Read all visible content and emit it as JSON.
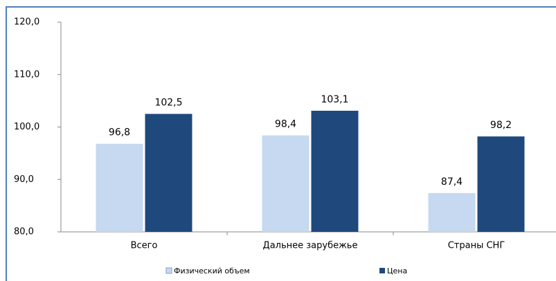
{
  "chart_data": {
    "type": "bar",
    "categories": [
      "Всего",
      "Дальнее зарубежье",
      "Страны СНГ"
    ],
    "series": [
      {
        "name": "Физический объем",
        "color": "#c6d9f1",
        "values": [
          96.8,
          98.4,
          87.4
        ],
        "value_labels": [
          "96,8",
          "98,4",
          "87,4"
        ]
      },
      {
        "name": "Цена",
        "color": "#1f497d",
        "values": [
          102.5,
          103.1,
          98.2
        ],
        "value_labels": [
          "102,5",
          "103,1",
          "98,2"
        ]
      }
    ],
    "ylim": [
      80,
      120
    ],
    "yticks": [
      {
        "value": 80,
        "label": "80,0"
      },
      {
        "value": 90,
        "label": "90,0"
      },
      {
        "value": 100,
        "label": "100,0"
      },
      {
        "value": 110,
        "label": "110,0"
      },
      {
        "value": 120,
        "label": "120,0"
      }
    ],
    "legend": "bottom"
  }
}
